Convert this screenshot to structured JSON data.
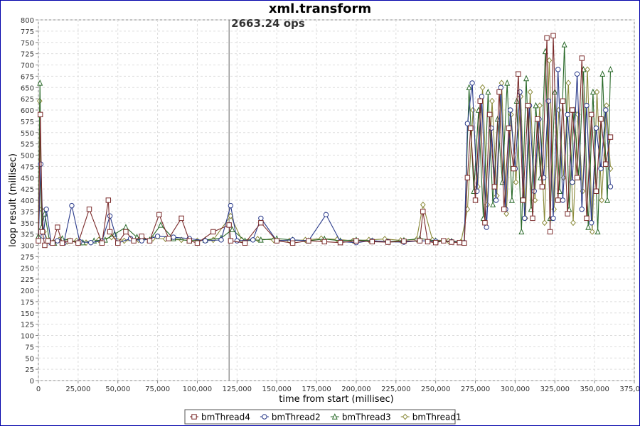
{
  "chart_data": {
    "type": "line",
    "title": "xml.transform",
    "annotation": "2663.24 ops",
    "annotation_x": 120000,
    "xlabel": "time from start (millisec)",
    "ylabel": "loop result (millisec)",
    "xlim": [
      0,
      375000
    ],
    "ylim": [
      0,
      800
    ],
    "x_ticks": [
      0,
      25000,
      50000,
      75000,
      100000,
      125000,
      150000,
      175000,
      200000,
      225000,
      250000,
      275000,
      300000,
      325000,
      350000,
      375000
    ],
    "x_tick_labels": [
      "0",
      "25,000",
      "50,000",
      "75,000",
      "100,000",
      "125,000",
      "150,000",
      "175,000",
      "200,000",
      "225,000",
      "250,000",
      "275,000",
      "300,000",
      "325,000",
      "350,000",
      "375,000"
    ],
    "y_ticks": [
      0,
      25,
      50,
      75,
      100,
      125,
      150,
      175,
      200,
      225,
      250,
      275,
      300,
      325,
      350,
      375,
      400,
      425,
      450,
      475,
      500,
      525,
      550,
      575,
      600,
      625,
      650,
      675,
      700,
      725,
      750,
      775,
      800
    ],
    "grid": true,
    "legend_position": "bottom",
    "series": [
      {
        "name": "bmThread4",
        "color": "#7a2a2a",
        "marker": "square",
        "x": [
          0,
          1200,
          2500,
          4000,
          6000,
          9000,
          12000,
          15000,
          20000,
          25000,
          32000,
          40000,
          44000,
          45000,
          50000,
          55000,
          60000,
          65000,
          70000,
          76000,
          82000,
          90000,
          95000,
          100000,
          110000,
          120000,
          121000,
          130000,
          140000,
          150000,
          160000,
          170000,
          180000,
          190000,
          200000,
          210000,
          220000,
          230000,
          240000,
          242000,
          245000,
          250000,
          255000,
          260000,
          265000,
          268000,
          270000,
          272000,
          275000,
          278000,
          281000,
          284000,
          287000,
          290000,
          293000,
          296000,
          299000,
          302000,
          305000,
          308000,
          311000,
          314000,
          317000,
          320000,
          322000,
          324000,
          327000,
          330000,
          333000,
          336000,
          339000,
          342000,
          345000,
          348000,
          351000,
          354000,
          357000,
          360000
        ],
        "y": [
          310,
          590,
          330,
          300,
          310,
          305,
          340,
          305,
          310,
          305,
          380,
          305,
          400,
          330,
          305,
          330,
          310,
          320,
          310,
          368,
          315,
          360,
          310,
          305,
          330,
          345,
          310,
          305,
          350,
          310,
          305,
          310,
          308,
          306,
          310,
          308,
          307,
          309,
          310,
          375,
          308,
          306,
          310,
          307,
          306,
          305,
          450,
          560,
          400,
          620,
          350,
          590,
          430,
          640,
          380,
          560,
          470,
          680,
          400,
          610,
          360,
          580,
          430,
          760,
          330,
          765,
          400,
          620,
          370,
          600,
          450,
          715,
          360,
          590,
          420,
          580,
          480,
          540
        ]
      },
      {
        "name": "bmThread2",
        "color": "#2a3a8a",
        "marker": "circle",
        "x": [
          0,
          1500,
          3000,
          5000,
          8000,
          12000,
          16000,
          21000,
          26000,
          33000,
          40000,
          45000,
          50000,
          58000,
          65000,
          75000,
          85000,
          95000,
          105000,
          115000,
          121000,
          125000,
          135000,
          140000,
          150000,
          160000,
          170000,
          181000,
          190000,
          200000,
          210000,
          220000,
          230000,
          240000,
          250000,
          260000,
          268000,
          270000,
          273000,
          276000,
          279000,
          282000,
          285000,
          288000,
          291000,
          294000,
          297000,
          300000,
          303000,
          306000,
          309000,
          312000,
          315000,
          318000,
          321000,
          324000,
          327000,
          330000,
          333000,
          336000,
          339000,
          342000,
          345000,
          348000,
          351000,
          354000,
          357000,
          360000
        ],
        "y": [
          310,
          480,
          320,
          380,
          305,
          310,
          305,
          388,
          308,
          306,
          310,
          365,
          305,
          315,
          310,
          320,
          318,
          315,
          310,
          312,
          388,
          310,
          312,
          360,
          310,
          312,
          310,
          368,
          308,
          306,
          310,
          308,
          307,
          310,
          309,
          308,
          306,
          570,
          660,
          420,
          630,
          340,
          560,
          400,
          650,
          380,
          600,
          470,
          640,
          360,
          610,
          420,
          580,
          450,
          620,
          360,
          690,
          400,
          590,
          440,
          680,
          380,
          610,
          350,
          560,
          470,
          600,
          430
        ]
      },
      {
        "name": "bmThread3",
        "color": "#2a6a2a",
        "marker": "triangle",
        "x": [
          0,
          1000,
          2000,
          4000,
          7000,
          10000,
          15000,
          20000,
          28000,
          35000,
          42000,
          48000,
          55000,
          62000,
          70000,
          77000,
          85000,
          95000,
          105000,
          115000,
          122000,
          130000,
          140000,
          150000,
          160000,
          170000,
          180000,
          190000,
          200000,
          210000,
          220000,
          230000,
          240000,
          250000,
          260000,
          268000,
          271000,
          274000,
          277000,
          280000,
          283000,
          286000,
          289000,
          292000,
          295000,
          298000,
          301000,
          304000,
          307000,
          310000,
          313000,
          316000,
          319000,
          322000,
          325000,
          328000,
          331000,
          334000,
          337000,
          340000,
          343000,
          346000,
          349000,
          352000,
          355000,
          358000,
          360000
        ],
        "y": [
          320,
          660,
          340,
          370,
          310,
          305,
          315,
          310,
          306,
          310,
          312,
          325,
          340,
          318,
          312,
          345,
          315,
          310,
          312,
          316,
          335,
          310,
          312,
          315,
          312,
          310,
          314,
          310,
          312,
          310,
          308,
          311,
          315,
          310,
          309,
          307,
          650,
          420,
          600,
          360,
          640,
          390,
          580,
          440,
          660,
          400,
          620,
          330,
          670,
          380,
          610,
          450,
          730,
          360,
          640,
          420,
          745,
          380,
          600,
          450,
          690,
          340,
          640,
          330,
          680,
          400,
          690
        ]
      },
      {
        "name": "bmThread1",
        "color": "#8a8a3a",
        "marker": "diamond",
        "x": [
          0,
          800,
          1800,
          3500,
          6000,
          9000,
          13000,
          18000,
          24000,
          30000,
          38000,
          46000,
          54000,
          63000,
          72000,
          80000,
          90000,
          100000,
          110000,
          121000,
          128000,
          138000,
          148000,
          158000,
          168000,
          178000,
          188000,
          198000,
          208000,
          218000,
          228000,
          238000,
          242000,
          248000,
          258000,
          266000,
          270000,
          273500,
          276500,
          279500,
          282500,
          285500,
          288500,
          291500,
          294500,
          297500,
          300500,
          303500,
          306500,
          309500,
          312500,
          315500,
          318500,
          321500,
          324500,
          327500,
          330500,
          333500,
          336500,
          339500,
          342500,
          345500,
          348500,
          351500,
          354500,
          357500,
          360000
        ],
        "y": [
          315,
          620,
          380,
          330,
          310,
          306,
          312,
          308,
          310,
          306,
          312,
          318,
          310,
          312,
          315,
          314,
          312,
          310,
          312,
          365,
          312,
          314,
          312,
          310,
          312,
          315,
          313,
          310,
          312,
          314,
          311,
          313,
          390,
          312,
          310,
          308,
          380,
          600,
          430,
          650,
          390,
          620,
          410,
          660,
          370,
          590,
          440,
          630,
          360,
          640,
          400,
          610,
          350,
          710,
          380,
          600,
          450,
          660,
          350,
          590,
          420,
          690,
          330,
          640,
          400,
          610,
          470
        ]
      }
    ]
  }
}
